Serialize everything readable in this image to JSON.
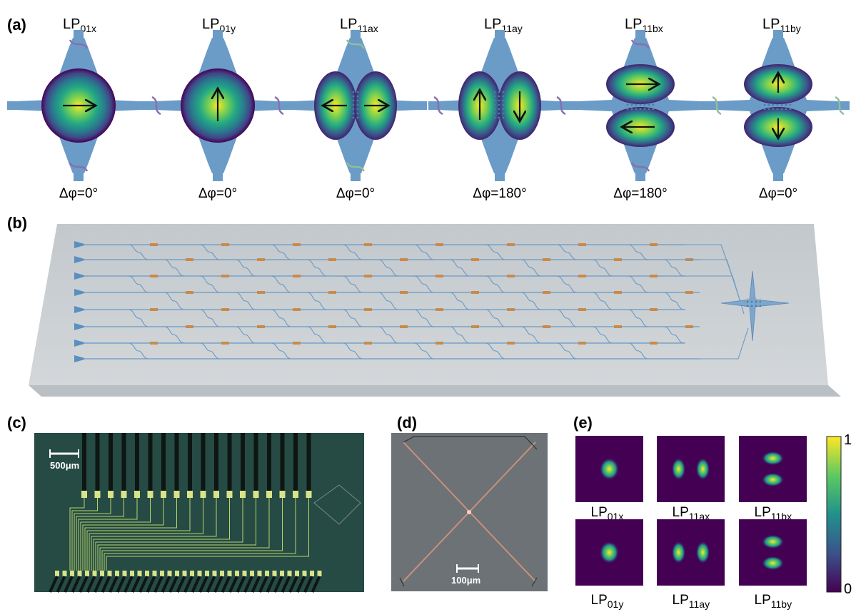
{
  "panel_labels": {
    "a": "(a)",
    "b": "(b)",
    "c": "(c)",
    "d": "(d)",
    "e": "(e)"
  },
  "modes_a": [
    {
      "base": "LP",
      "sub": "01x",
      "phase": "Δφ=0°"
    },
    {
      "base": "LP",
      "sub": "01y",
      "phase": "Δφ=0°"
    },
    {
      "base": "LP",
      "sub": "11ax",
      "phase": "Δφ=0°"
    },
    {
      "base": "LP",
      "sub": "11ay",
      "phase": "Δφ=180°"
    },
    {
      "base": "LP",
      "sub": "11bx",
      "phase": "Δφ=180°"
    },
    {
      "base": "LP",
      "sub": "11by",
      "phase": "Δφ=0°"
    }
  ],
  "scalebars": {
    "c": "500μm",
    "d": "100μm"
  },
  "modes_e": [
    {
      "base": "LP",
      "sub": "01x"
    },
    {
      "base": "LP",
      "sub": "11ax"
    },
    {
      "base": "LP",
      "sub": "11bx"
    },
    {
      "base": "LP",
      "sub": "01y"
    },
    {
      "base": "LP",
      "sub": "11ay"
    },
    {
      "base": "LP",
      "sub": "11by"
    }
  ],
  "colorbar": {
    "max_label": "1",
    "min_label": "0"
  },
  "colors": {
    "waveguide": "#6b9bc7",
    "chip": "#c9ced1",
    "heater": "#c98a4a",
    "viridis_dark": "#440154",
    "viridis_mid": "#21918c",
    "viridis_light": "#fde725"
  }
}
